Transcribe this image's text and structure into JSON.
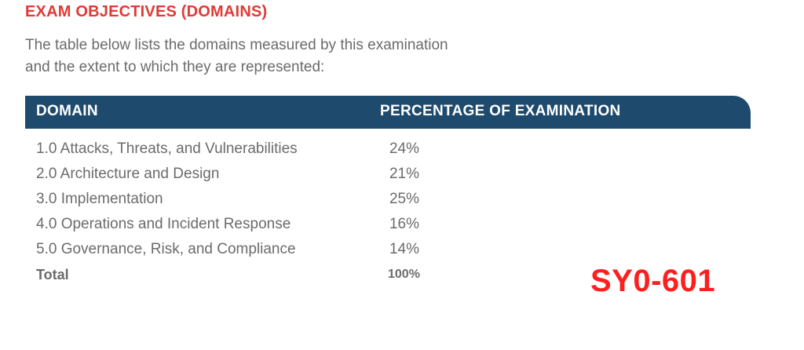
{
  "document": {
    "heading": "EXAM OBJECTIVES (DOMAINS)",
    "intro_line_1": "The table below lists the domains measured by this examination",
    "intro_line_2": "and the extent to which they are represented:"
  },
  "table": {
    "columns": [
      "DOMAIN",
      "PERCENTAGE OF EXAMINATION"
    ],
    "rows": [
      {
        "domain": "1.0 Attacks, Threats, and Vulnerabilities",
        "percent": "24%"
      },
      {
        "domain": "2.0 Architecture and Design",
        "percent": "21%"
      },
      {
        "domain": "3.0 Implementation",
        "percent": "25%"
      },
      {
        "domain": "4.0 Operations and Incident Response",
        "percent": "16%"
      },
      {
        "domain": "5.0 Governance, Risk, and Compliance",
        "percent": "14%"
      }
    ],
    "total": {
      "label": "Total",
      "percent": "100%"
    }
  },
  "exam_code": "SY0-601",
  "colors": {
    "heading": "#e03a35",
    "header_bg": "#1e4a6d",
    "body_text": "#6b6b6b",
    "exam_code": "#ff1f1f"
  }
}
